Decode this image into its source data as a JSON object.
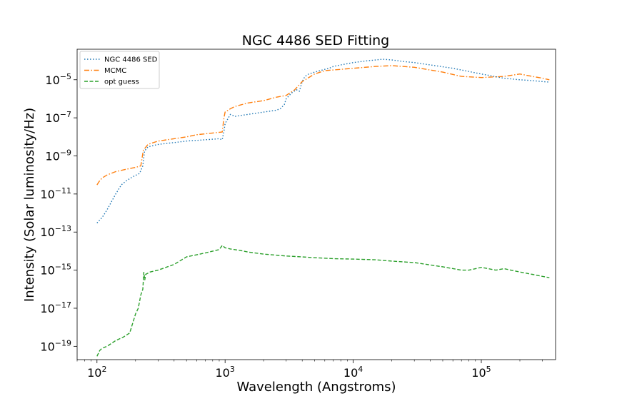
{
  "chart_data": {
    "type": "line",
    "title": "NGC 4486 SED Fitting",
    "xlabel": "Wavelength (Angstroms)",
    "ylabel": "Intensity (Solar luminosity/Hz)",
    "xscale": "log",
    "yscale": "log",
    "xlim": [
      70,
      380000
    ],
    "ylim": [
      2e-20,
      0.0004
    ],
    "grid": false,
    "legend_position": "top-left",
    "x_ticks": [
      {
        "base": "10",
        "exp": "2",
        "value": 100
      },
      {
        "base": "10",
        "exp": "3",
        "value": 1000
      },
      {
        "base": "10",
        "exp": "4",
        "value": 10000
      },
      {
        "base": "10",
        "exp": "5",
        "value": 100000
      }
    ],
    "y_ticks": [
      {
        "base": "10",
        "exp": "−19",
        "value": 1e-19
      },
      {
        "base": "10",
        "exp": "−17",
        "value": 1e-17
      },
      {
        "base": "10",
        "exp": "−15",
        "value": 1e-15
      },
      {
        "base": "10",
        "exp": "−13",
        "value": 1e-13
      },
      {
        "base": "10",
        "exp": "−11",
        "value": 1e-11
      },
      {
        "base": "10",
        "exp": "−9",
        "value": 1e-09
      },
      {
        "base": "10",
        "exp": "−7",
        "value": 1e-07
      },
      {
        "base": "10",
        "exp": "−5",
        "value": 1e-05
      }
    ],
    "series": [
      {
        "name": "NGC 4486 SED",
        "color": "#1f77b4",
        "dash": "dotted",
        "x": [
          100,
          110,
          120,
          130,
          140,
          155,
          170,
          190,
          215,
          228,
          235,
          250,
          300,
          400,
          500,
          700,
          900,
          950,
          980,
          1000,
          1100,
          1200,
          1500,
          2000,
          2500,
          2700,
          2900,
          3000,
          3300,
          3600,
          3800,
          4000,
          4200,
          4500,
          5000,
          5500,
          6000,
          6500,
          7000,
          8000,
          10000,
          13000,
          15000,
          17000,
          20000,
          25000,
          30000,
          40000,
          60000,
          100000,
          150000,
          200000,
          250000,
          300000,
          340000
        ],
        "y": [
          3e-13,
          6e-13,
          1.5e-12,
          4e-12,
          1e-11,
          3e-11,
          5e-11,
          8e-11,
          1.2e-10,
          3e-10,
          1.8e-09,
          3e-09,
          4e-09,
          5e-09,
          6e-09,
          7e-09,
          8e-09,
          7e-09,
          2e-08,
          5e-08,
          1.5e-07,
          1.2e-07,
          1.5e-07,
          2e-07,
          2.5e-07,
          3e-07,
          5e-07,
          1e-06,
          2e-06,
          3e-06,
          2.5e-06,
          8e-06,
          1.5e-05,
          2e-05,
          2.5e-05,
          3e-05,
          3.5e-05,
          4e-05,
          5e-05,
          6e-05,
          8e-05,
          0.0001,
          0.00011,
          0.00012,
          0.00011,
          9e-05,
          8e-05,
          6e-05,
          4e-05,
          2e-05,
          1.2e-05,
          1e-05,
          9e-06,
          8e-06,
          7.5e-06
        ]
      },
      {
        "name": "MCMC",
        "color": "#ff7f0e",
        "dash": "dashdot",
        "x": [
          100,
          105,
          110,
          120,
          140,
          170,
          200,
          220,
          230,
          250,
          300,
          400,
          500,
          600,
          800,
          950,
          980,
          1000,
          1100,
          1200,
          1500,
          2000,
          2500,
          3000,
          3500,
          4000,
          5000,
          6000,
          8000,
          10000,
          15000,
          20000,
          30000,
          50000,
          70000,
          100000,
          150000,
          200000,
          250000,
          300000,
          340000
        ],
        "y": [
          3e-11,
          5e-11,
          7e-11,
          1e-10,
          1.5e-10,
          2e-10,
          2.5e-10,
          3e-10,
          2e-09,
          4e-09,
          6e-09,
          8e-09,
          1e-08,
          1.3e-08,
          1.6e-08,
          1.8e-08,
          1e-07,
          2e-07,
          3e-07,
          4e-07,
          6e-07,
          8e-07,
          1.2e-06,
          1.5e-06,
          3e-06,
          8e-06,
          2e-05,
          3e-05,
          3.5e-05,
          4e-05,
          5e-05,
          5.5e-05,
          4.5e-05,
          2.5e-05,
          1.5e-05,
          1.3e-05,
          1.5e-05,
          2e-05,
          1.5e-05,
          1.2e-05,
          1e-05
        ]
      },
      {
        "name": "opt guess",
        "color": "#2ca02c",
        "dash": "dashed",
        "x": [
          100,
          105,
          110,
          120,
          140,
          160,
          180,
          200,
          210,
          220,
          228,
          232,
          236,
          240,
          260,
          300,
          400,
          500,
          700,
          900,
          950,
          1000,
          1100,
          1300,
          1500,
          2000,
          3000,
          4000,
          5000,
          7000,
          10000,
          15000,
          20000,
          30000,
          50000,
          70000,
          80000,
          100000,
          130000,
          150000,
          200000,
          250000,
          340000
        ],
        "y": [
          3e-20,
          6e-20,
          8e-20,
          1e-19,
          2e-19,
          3e-19,
          5e-19,
          5e-18,
          1e-17,
          5e-17,
          1e-16,
          8e-16,
          3e-16,
          6e-16,
          8e-16,
          1e-15,
          2e-15,
          5e-15,
          8e-15,
          1.2e-14,
          2e-14,
          1.5e-14,
          1.3e-14,
          1.1e-14,
          9e-15,
          7e-15,
          5.5e-15,
          5e-15,
          4.5e-15,
          4e-15,
          3.8e-15,
          3.5e-15,
          3e-15,
          2.5e-15,
          1.5e-15,
          1e-15,
          1e-15,
          1.4e-15,
          1e-15,
          1.2e-15,
          8e-16,
          6e-16,
          4e-16
        ]
      }
    ]
  }
}
